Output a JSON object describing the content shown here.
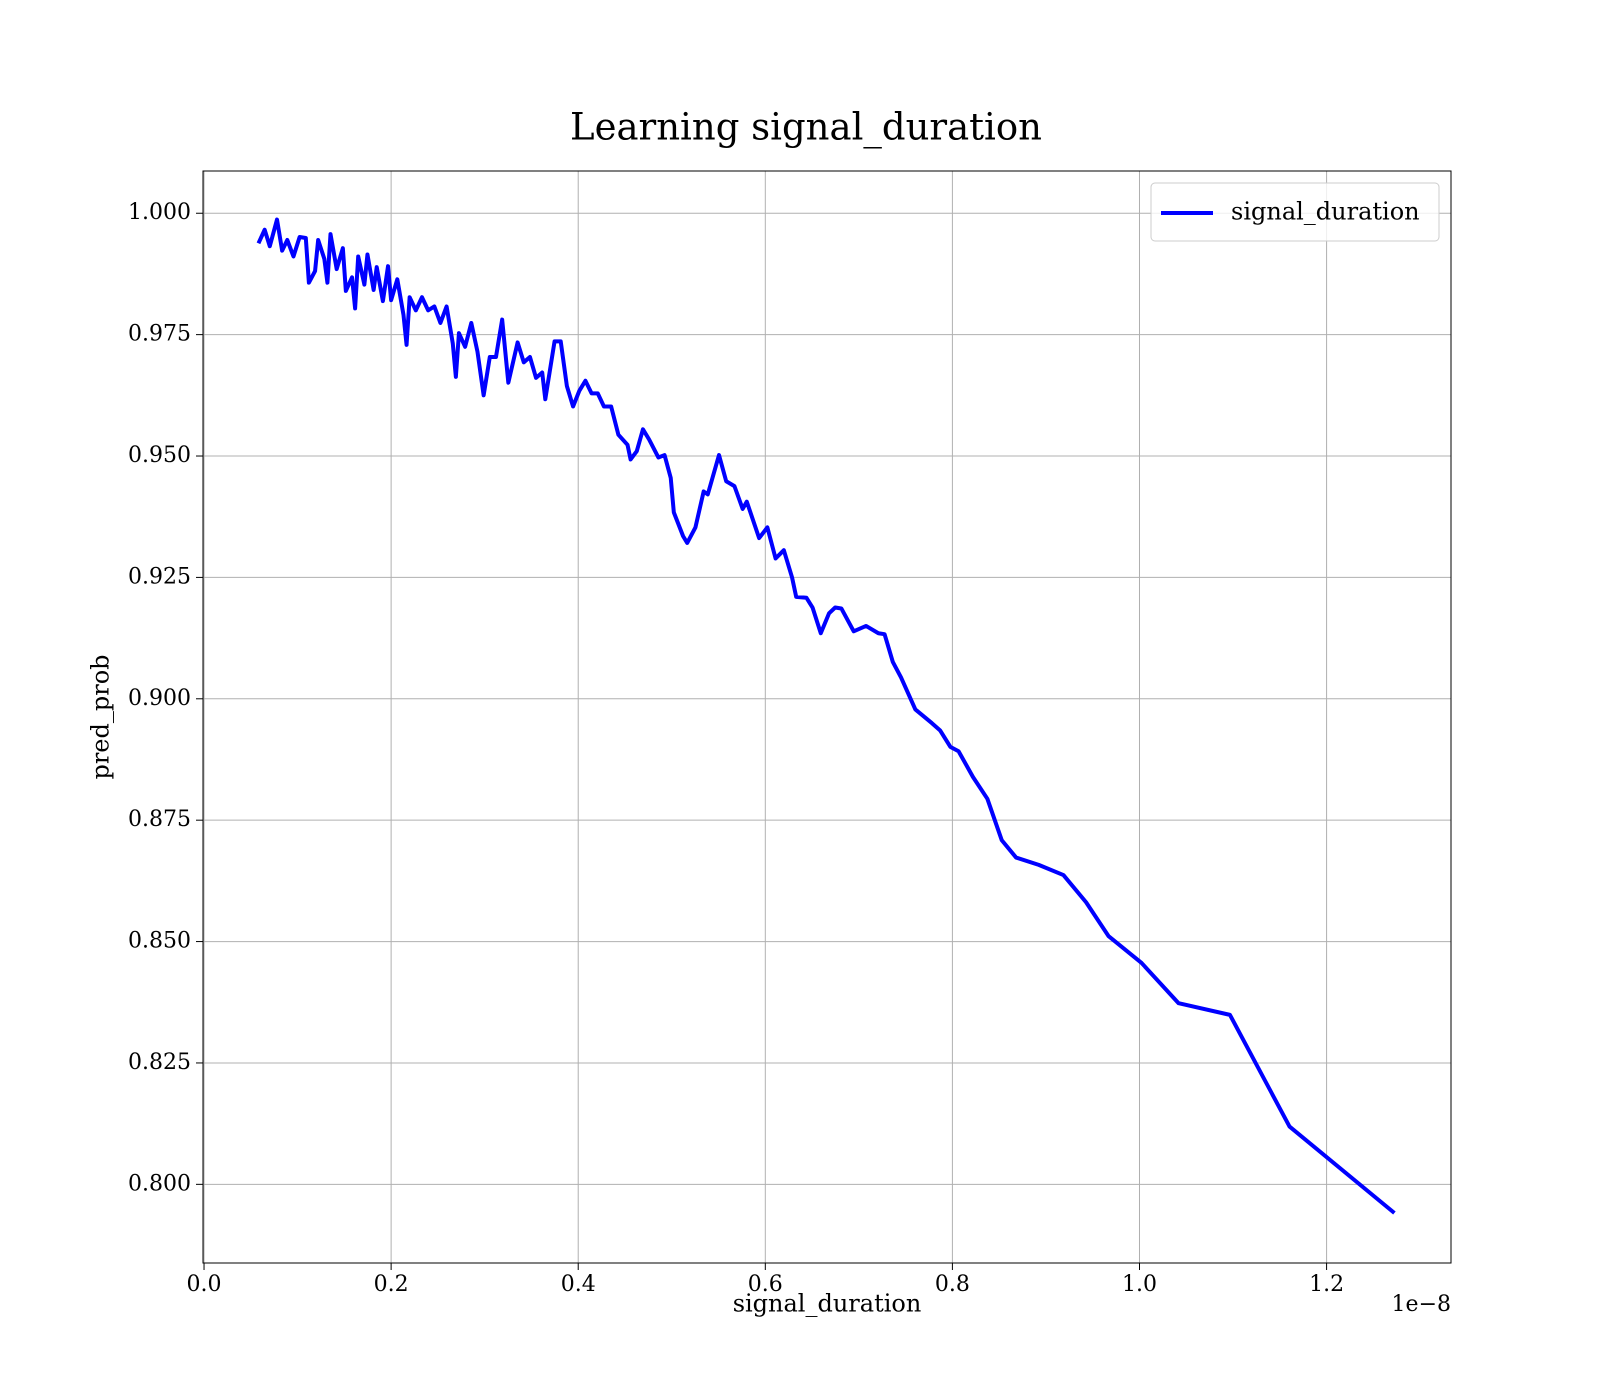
{
  "chart_data": {
    "type": "line",
    "title": "Learning signal_duration",
    "x_label": "signal_duration",
    "y_label": "pred_prob",
    "x_offset_text": "1e−8",
    "x": [
      0.0582,
      0.0648,
      0.0703,
      0.078,
      0.0835,
      0.089,
      0.0956,
      0.1022,
      0.1088,
      0.1121,
      0.1187,
      0.122,
      0.1286,
      0.1319,
      0.1352,
      0.1418,
      0.1484,
      0.1516,
      0.1582,
      0.1615,
      0.1648,
      0.1714,
      0.1747,
      0.1813,
      0.1846,
      0.1912,
      0.1967,
      0.2,
      0.2066,
      0.2132,
      0.2165,
      0.2198,
      0.2264,
      0.233,
      0.2396,
      0.2462,
      0.2527,
      0.2593,
      0.2659,
      0.2692,
      0.2725,
      0.2791,
      0.2857,
      0.2923,
      0.2989,
      0.3055,
      0.3121,
      0.3187,
      0.3253,
      0.3352,
      0.3418,
      0.3484,
      0.3549,
      0.3615,
      0.3648,
      0.3747,
      0.3813,
      0.3879,
      0.3945,
      0.4011,
      0.4077,
      0.4143,
      0.4209,
      0.4275,
      0.4352,
      0.4429,
      0.4527,
      0.456,
      0.4626,
      0.4692,
      0.4758,
      0.4857,
      0.4923,
      0.4989,
      0.5022,
      0.5121,
      0.5165,
      0.5253,
      0.5341,
      0.5385,
      0.5505,
      0.5582,
      0.567,
      0.5758,
      0.5802,
      0.5934,
      0.6022,
      0.611,
      0.6198,
      0.6286,
      0.633,
      0.644,
      0.6505,
      0.6593,
      0.6681,
      0.6747,
      0.6813,
      0.6945,
      0.7077,
      0.7209,
      0.7275,
      0.7363,
      0.7451,
      0.7604,
      0.778,
      0.7868,
      0.7978,
      0.8066,
      0.822,
      0.8374,
      0.8527,
      0.8681,
      0.8923,
      0.9187,
      0.9429,
      0.967,
      1.0022,
      1.0418,
      1.0967,
      1.1604,
      1.2725
    ],
    "series": [
      {
        "name": "signal_duration",
        "color": "#0000ff",
        "values": [
          0.9938,
          0.9966,
          0.9932,
          0.9987,
          0.9923,
          0.9945,
          0.9911,
          0.9951,
          0.9949,
          0.9857,
          0.9881,
          0.9945,
          0.9906,
          0.9857,
          0.9957,
          0.9885,
          0.9928,
          0.984,
          0.9868,
          0.9804,
          0.9911,
          0.9853,
          0.9915,
          0.9842,
          0.9889,
          0.9819,
          0.9891,
          0.9821,
          0.9864,
          0.9791,
          0.9729,
          0.9827,
          0.98,
          0.9827,
          0.98,
          0.9808,
          0.9774,
          0.9808,
          0.9732,
          0.9663,
          0.9753,
          0.9725,
          0.9774,
          0.9715,
          0.9625,
          0.9704,
          0.9704,
          0.9781,
          0.9651,
          0.9734,
          0.9693,
          0.9704,
          0.9661,
          0.9672,
          0.9617,
          0.9736,
          0.9736,
          0.9644,
          0.9602,
          0.9634,
          0.9655,
          0.9629,
          0.9629,
          0.9602,
          0.9602,
          0.9544,
          0.9523,
          0.9493,
          0.951,
          0.9555,
          0.9534,
          0.9497,
          0.9502,
          0.9455,
          0.9384,
          0.9335,
          0.9321,
          0.9353,
          0.9427,
          0.9421,
          0.9502,
          0.9448,
          0.9438,
          0.9391,
          0.9406,
          0.9331,
          0.9353,
          0.9289,
          0.9306,
          0.925,
          0.921,
          0.9208,
          0.9188,
          0.9135,
          0.9176,
          0.9188,
          0.9186,
          0.9139,
          0.915,
          0.9135,
          0.9133,
          0.9076,
          0.9044,
          0.8978,
          0.895,
          0.8935,
          0.8901,
          0.8892,
          0.8839,
          0.8794,
          0.8709,
          0.8673,
          0.8658,
          0.8637,
          0.8581,
          0.8511,
          0.8456,
          0.8373,
          0.8349,
          0.8119,
          0.7941
        ]
      }
    ],
    "xlim": [
      -0.0011,
      1.333
    ],
    "xticks": [
      {
        "value": 0,
        "label": "0.0"
      },
      0.2,
      0.4,
      0.6,
      0.8,
      {
        "value": 1,
        "label": "1.0"
      },
      1.2
    ],
    "ylim": [
      0.7838,
      1.0087
    ],
    "yticks": [
      {
        "value": 0.8,
        "label": "0.800"
      },
      0.825,
      {
        "value": 0.85,
        "label": "0.850"
      },
      0.875,
      {
        "value": 0.9,
        "label": "0.900"
      },
      0.925,
      {
        "value": 0.95,
        "label": "0.950"
      },
      0.975,
      {
        "value": 1,
        "label": "1.000"
      }
    ],
    "grid": true,
    "legend": "upper right"
  }
}
